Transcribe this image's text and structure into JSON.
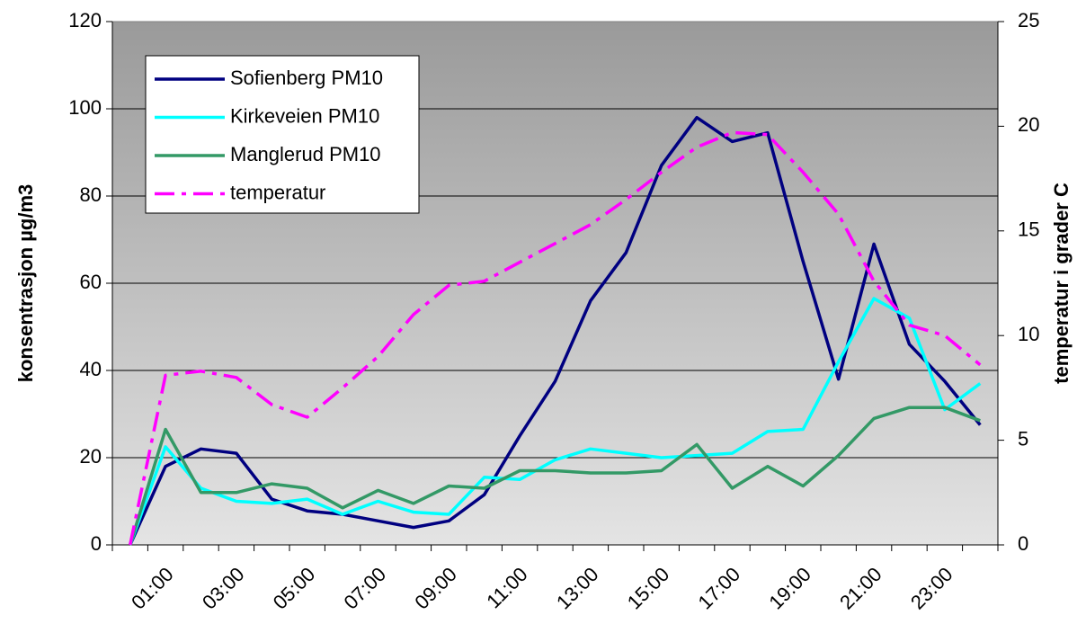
{
  "chart_data": {
    "type": "line",
    "y_label": "konsentrasjon µg/m3",
    "y2_label": "temperatur i grader C",
    "categories": [
      null,
      "01:00",
      null,
      "03:00",
      null,
      "05:00",
      null,
      "07:00",
      null,
      "09:00",
      null,
      "11:00",
      null,
      "13:00",
      null,
      "15:00",
      null,
      "17:00",
      null,
      "19:00",
      null,
      "21:00",
      null,
      "23:00",
      null
    ],
    "series": [
      {
        "name": "Sofienberg PM10",
        "color": "#000080",
        "values": [
          0,
          18,
          22,
          21,
          10.5,
          7.8,
          7,
          5.5,
          4,
          5.5,
          11.5,
          25,
          37.5,
          56,
          67,
          87,
          98,
          92.5,
          94.5,
          65,
          38,
          69,
          46,
          37.5,
          27.5
        ]
      },
      {
        "name": "Kirkeveien PM10",
        "color": "#00ffff",
        "values": [
          0,
          22.5,
          13,
          10,
          9.5,
          10.5,
          7,
          10,
          7.5,
          7,
          15.5,
          15,
          19.5,
          22,
          21,
          20,
          20.5,
          21,
          26,
          26.5,
          42,
          56.5,
          52,
          31,
          37
        ]
      },
      {
        "name": "Manglerud PM10",
        "color": "#339966",
        "values": [
          0,
          26.5,
          12,
          12,
          14,
          13,
          8.5,
          12.5,
          9.5,
          13.5,
          13,
          17,
          17,
          16.5,
          16.5,
          17,
          23,
          13,
          18,
          13.5,
          20.5,
          29,
          31.5,
          31.5,
          28.5
        ]
      },
      {
        "name": "temperatur",
        "color": "#ff00ff",
        "axis": "y2",
        "dashed": true,
        "values": [
          0,
          8.1,
          8.3,
          8,
          6.7,
          6.1,
          7.5,
          9,
          11,
          12.4,
          12.6,
          13.5,
          14.4,
          15.3,
          16.5,
          17.8,
          19,
          19.7,
          19.6,
          17.8,
          15.8,
          12.6,
          10.5,
          10,
          8.6
        ]
      }
    ],
    "ylim": [
      0,
      120
    ],
    "yticks": [
      0,
      20,
      40,
      60,
      80,
      100,
      120
    ],
    "y2lim": [
      0,
      25
    ],
    "y2ticks": [
      0,
      5,
      10,
      15,
      20,
      25
    ],
    "grid": true,
    "legend": "upper left"
  }
}
